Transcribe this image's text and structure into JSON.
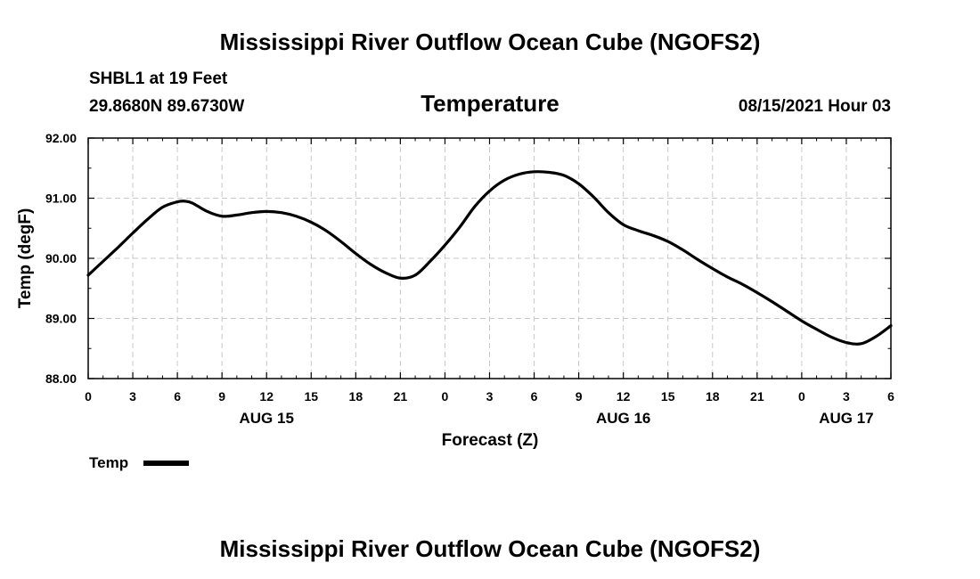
{
  "header": {
    "title": "Mississippi River Outflow Ocean Cube (NGOFS2)",
    "station": "SHBL1 at 19 Feet",
    "location": "29.8680N  89.6730W",
    "variable": "Temperature",
    "datetime": "08/15/2021 Hour 03"
  },
  "footer": {
    "title": "Mississippi River Outflow Ocean Cube (NGOFS2)"
  },
  "chart_data": {
    "type": "line",
    "xlabel": "Forecast (Z)",
    "ylabel": "Temp (degF)",
    "xlim": [
      0,
      54
    ],
    "ylim": [
      88.0,
      92.0
    ],
    "grid": true,
    "x_tick_labels": [
      "0",
      "3",
      "6",
      "9",
      "12",
      "15",
      "18",
      "21",
      "0",
      "3",
      "6",
      "9",
      "12",
      "15",
      "18",
      "21",
      "0",
      "3",
      "6"
    ],
    "y_tick_labels": [
      "88.00",
      "89.00",
      "90.00",
      "91.00",
      "92.00"
    ],
    "y_tick_values": [
      88.0,
      89.0,
      90.0,
      91.0,
      92.0
    ],
    "day_labels": [
      {
        "label": "AUG 15",
        "x": 12
      },
      {
        "label": "AUG 16",
        "x": 36
      },
      {
        "label": "AUG 17",
        "x": 51
      }
    ],
    "legend": {
      "label": "Temp",
      "placement": "bottom-left"
    },
    "series": [
      {
        "name": "Temp",
        "x": [
          0,
          1,
          2,
          3,
          4,
          5,
          6,
          6.5,
          7,
          8,
          9,
          10,
          11,
          12,
          13,
          14,
          15,
          16,
          17,
          18,
          19,
          20,
          21,
          22,
          23,
          24,
          25,
          26,
          27,
          28,
          29,
          30,
          31,
          32,
          33,
          34,
          35,
          36,
          37,
          38,
          39,
          40,
          41,
          42,
          43,
          44,
          45,
          46,
          47,
          48,
          49,
          50,
          51,
          52,
          53,
          54
        ],
        "values": [
          89.72,
          89.95,
          90.18,
          90.42,
          90.65,
          90.85,
          90.94,
          90.95,
          90.92,
          90.78,
          90.7,
          90.72,
          90.76,
          90.78,
          90.76,
          90.7,
          90.6,
          90.46,
          90.28,
          90.08,
          89.9,
          89.76,
          89.67,
          89.72,
          89.95,
          90.22,
          90.52,
          90.86,
          91.12,
          91.3,
          91.4,
          91.44,
          91.43,
          91.38,
          91.24,
          91.02,
          90.76,
          90.56,
          90.46,
          90.38,
          90.28,
          90.14,
          89.98,
          89.83,
          89.69,
          89.57,
          89.43,
          89.28,
          89.12,
          88.96,
          88.82,
          88.69,
          88.6,
          88.58,
          88.7,
          88.88
        ]
      }
    ]
  }
}
